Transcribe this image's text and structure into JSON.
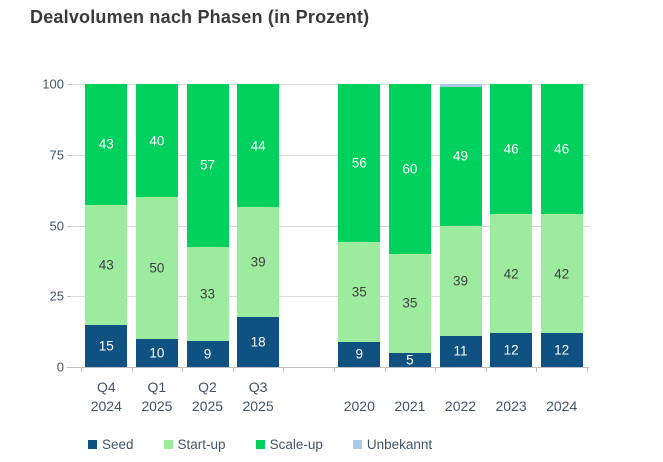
{
  "title": "Dealvolumen nach Phasen (in Prozent)",
  "chart_data": {
    "type": "bar",
    "stacked": true,
    "unit": "percent",
    "title": "Dealvolumen nach Phasen (in Prozent)",
    "xlabel": "",
    "ylabel": "",
    "ylim": [
      0,
      100
    ],
    "yticks": [
      0,
      25,
      50,
      75,
      100
    ],
    "grid": true,
    "legend_position": "bottom",
    "legend": [
      "Seed",
      "Start-up",
      "Scale-up",
      "Unbekannt"
    ],
    "series_order": [
      "Seed",
      "Start-up",
      "Scale-up",
      "Unbekannt"
    ],
    "colors": {
      "Seed": "#0f5181",
      "Start-up": "#9deb9e",
      "Scale-up": "#00d15e",
      "Unbekannt": "#a6cbec",
      "gridline": "#d9d9d9",
      "axis_line": "#bfbfbf",
      "axis_text": "#44546a",
      "title_text": "#3a3a3a",
      "value_label_light": "#ffffff",
      "value_label_dark": "#3f4040"
    },
    "label_style": {
      "Seed": "light",
      "Start-up": "dark",
      "Scale-up": "light",
      "Unbekannt": "none"
    },
    "groups": [
      {
        "name": "quarters",
        "category_lines": [
          [
            "Q4",
            "2024"
          ],
          [
            "Q1",
            "2025"
          ],
          [
            "Q2",
            "2025"
          ],
          [
            "Q3",
            "2025"
          ]
        ],
        "series": [
          {
            "name": "Seed",
            "values": [
              15,
              10,
              9,
              18
            ]
          },
          {
            "name": "Start-up",
            "values": [
              43,
              50,
              33,
              39
            ]
          },
          {
            "name": "Scale-up",
            "values": [
              43,
              40,
              57,
              44
            ]
          },
          {
            "name": "Unbekannt",
            "values": [
              0,
              0,
              0,
              0
            ]
          }
        ]
      },
      {
        "name": "years",
        "category_lines": [
          [
            "2020"
          ],
          [
            "2021"
          ],
          [
            "2022"
          ],
          [
            "2023"
          ],
          [
            "2024"
          ]
        ],
        "series": [
          {
            "name": "Seed",
            "values": [
              9,
              5,
              11,
              12,
              12
            ]
          },
          {
            "name": "Start-up",
            "values": [
              35,
              35,
              39,
              42,
              42
            ]
          },
          {
            "name": "Scale-up",
            "values": [
              56,
              60,
              49,
              46,
              46
            ]
          },
          {
            "name": "Unbekannt",
            "values": [
              0,
              0,
              1,
              0,
              0
            ]
          }
        ]
      }
    ]
  }
}
